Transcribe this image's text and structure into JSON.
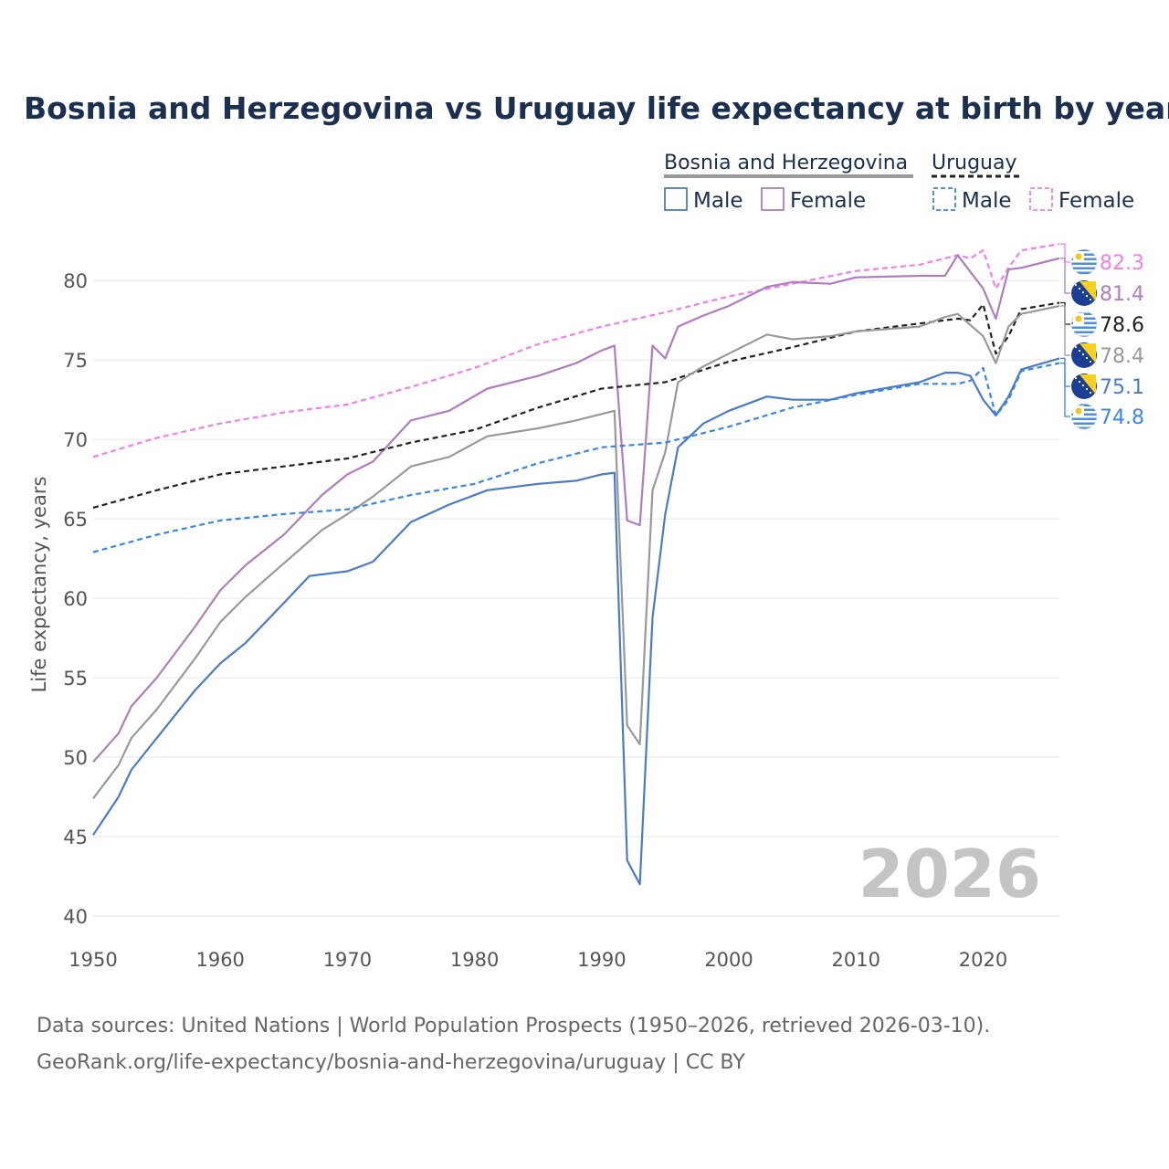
{
  "chart_data": {
    "type": "line",
    "title": "Bosnia and Herzegovina vs Uruguay life expectancy at birth by year",
    "xlabel": "",
    "ylabel": "Life expectancy, years",
    "xlim": [
      1950,
      2026
    ],
    "ylim": [
      40,
      83
    ],
    "xticks": [
      1950,
      1960,
      1970,
      1980,
      1990,
      2000,
      2010,
      2020
    ],
    "yticks": [
      40,
      45,
      50,
      55,
      60,
      65,
      70,
      75,
      80
    ],
    "grid": true,
    "legend_groups": [
      {
        "name": "Bosnia and Herzegovina",
        "style": "solid",
        "color": "#999999",
        "entries": [
          {
            "label": "Male",
            "color": "#4a7bc8"
          },
          {
            "label": "Female",
            "color": "#b07cc0"
          }
        ]
      },
      {
        "name": "Uruguay",
        "style": "dashed",
        "color": "#222222",
        "entries": [
          {
            "label": "Male",
            "color": "#3a86e8"
          },
          {
            "label": "Female",
            "color": "#f27ef0"
          }
        ]
      }
    ],
    "watermark_year": "2026",
    "series": [
      {
        "name": "Uruguay Female",
        "country": "Uruguay",
        "color": "#f27ef0",
        "dash": true,
        "end_label": "82.3",
        "x": [
          1950,
          1955,
          1960,
          1965,
          1970,
          1975,
          1980,
          1985,
          1990,
          1995,
          2000,
          2005,
          2010,
          2015,
          2018,
          2019,
          2020,
          2021,
          2022,
          2023,
          2026
        ],
        "y": [
          68.9,
          70.1,
          71.0,
          71.7,
          72.2,
          73.3,
          74.5,
          76.0,
          77.1,
          78.0,
          79.0,
          79.8,
          80.6,
          81.0,
          81.6,
          81.4,
          81.9,
          79.5,
          80.8,
          81.9,
          82.3
        ]
      },
      {
        "name": "Bosnia and Herzegovina Female",
        "country": "Bosnia and Herzegovina",
        "color": "#b07cc0",
        "dash": false,
        "end_label": "81.4",
        "x": [
          1950,
          1952,
          1953,
          1955,
          1958,
          1960,
          1962,
          1965,
          1968,
          1970,
          1972,
          1975,
          1978,
          1981,
          1985,
          1988,
          1990,
          1991,
          1992,
          1993,
          1994,
          1995,
          1996,
          1998,
          2000,
          2003,
          2005,
          2008,
          2010,
          2015,
          2017,
          2018,
          2020,
          2021,
          2022,
          2023,
          2026
        ],
        "y": [
          49.7,
          51.5,
          53.2,
          55.0,
          58.2,
          60.5,
          62.1,
          64.0,
          66.5,
          67.8,
          68.6,
          71.2,
          71.8,
          73.2,
          74.0,
          74.8,
          75.6,
          75.9,
          64.9,
          64.6,
          75.9,
          75.1,
          77.1,
          77.8,
          78.4,
          79.6,
          79.9,
          79.8,
          80.2,
          80.3,
          80.3,
          81.6,
          79.5,
          77.6,
          80.7,
          80.8,
          81.4
        ]
      },
      {
        "name": "Uruguay Both sexes",
        "country": "Uruguay",
        "color": "#222222",
        "dash": true,
        "end_label": "78.6",
        "x": [
          1950,
          1955,
          1960,
          1965,
          1970,
          1975,
          1980,
          1985,
          1990,
          1995,
          2000,
          2005,
          2010,
          2015,
          2018,
          2019,
          2020,
          2021,
          2022,
          2023,
          2026
        ],
        "y": [
          65.7,
          66.8,
          67.8,
          68.3,
          68.8,
          69.8,
          70.6,
          72.0,
          73.2,
          73.6,
          74.9,
          75.8,
          76.8,
          77.3,
          77.6,
          77.5,
          78.5,
          75.4,
          76.5,
          78.2,
          78.6
        ]
      },
      {
        "name": "Bosnia and Herzegovina Both sexes",
        "country": "Bosnia and Herzegovina",
        "color": "#999999",
        "dash": false,
        "end_label": "78.4",
        "x": [
          1950,
          1952,
          1953,
          1955,
          1958,
          1960,
          1962,
          1965,
          1968,
          1970,
          1972,
          1975,
          1978,
          1981,
          1985,
          1988,
          1990,
          1991,
          1992,
          1993,
          1994,
          1995,
          1996,
          1998,
          2000,
          2003,
          2005,
          2008,
          2010,
          2015,
          2017,
          2018,
          2020,
          2021,
          2022,
          2023,
          2026
        ],
        "y": [
          47.4,
          49.5,
          51.2,
          53.0,
          56.2,
          58.5,
          60.1,
          62.2,
          64.3,
          65.3,
          66.4,
          68.3,
          68.9,
          70.2,
          70.7,
          71.2,
          71.6,
          71.8,
          52.0,
          50.8,
          66.8,
          69.2,
          73.6,
          74.6,
          75.4,
          76.6,
          76.3,
          76.5,
          76.8,
          77.1,
          77.7,
          77.9,
          76.5,
          74.8,
          77.1,
          77.9,
          78.4
        ]
      },
      {
        "name": "Bosnia and Herzegovina Male",
        "country": "Bosnia and Herzegovina",
        "color": "#4a7bc8",
        "dash": false,
        "end_label": "75.1",
        "x": [
          1950,
          1952,
          1953,
          1955,
          1958,
          1960,
          1962,
          1965,
          1967,
          1970,
          1972,
          1975,
          1978,
          1981,
          1985,
          1988,
          1990,
          1991,
          1992,
          1993,
          1994,
          1995,
          1996,
          1998,
          2000,
          2003,
          2005,
          2008,
          2010,
          2015,
          2017,
          2018,
          2019,
          2020,
          2021,
          2022,
          2023,
          2026
        ],
        "y": [
          45.1,
          47.5,
          49.2,
          51.2,
          54.2,
          55.9,
          57.2,
          59.7,
          61.4,
          61.7,
          62.3,
          64.8,
          65.9,
          66.8,
          67.2,
          67.4,
          67.8,
          67.9,
          43.5,
          42.0,
          58.8,
          65.3,
          69.5,
          71.0,
          71.8,
          72.7,
          72.5,
          72.5,
          72.9,
          73.6,
          74.2,
          74.2,
          74.0,
          72.5,
          71.5,
          72.7,
          74.4,
          75.1
        ]
      },
      {
        "name": "Uruguay Male",
        "country": "Uruguay",
        "color": "#3a86e8",
        "dash": true,
        "end_label": "74.8",
        "x": [
          1950,
          1955,
          1960,
          1965,
          1970,
          1975,
          1980,
          1985,
          1990,
          1995,
          2000,
          2005,
          2010,
          2015,
          2018,
          2019,
          2020,
          2021,
          2022,
          2023,
          2026
        ],
        "y": [
          62.9,
          64.0,
          64.9,
          65.3,
          65.6,
          66.5,
          67.2,
          68.5,
          69.5,
          69.8,
          70.8,
          72.0,
          72.8,
          73.5,
          73.5,
          73.7,
          74.5,
          71.5,
          72.5,
          74.3,
          74.8
        ]
      }
    ]
  },
  "source_line1": "Data sources: United Nations | World Population Prospects (1950–2026, retrieved 2026-03-10).",
  "source_line2": "GeoRank.org/life-expectancy/bosnia-and-herzegovina/uruguay | CC BY"
}
